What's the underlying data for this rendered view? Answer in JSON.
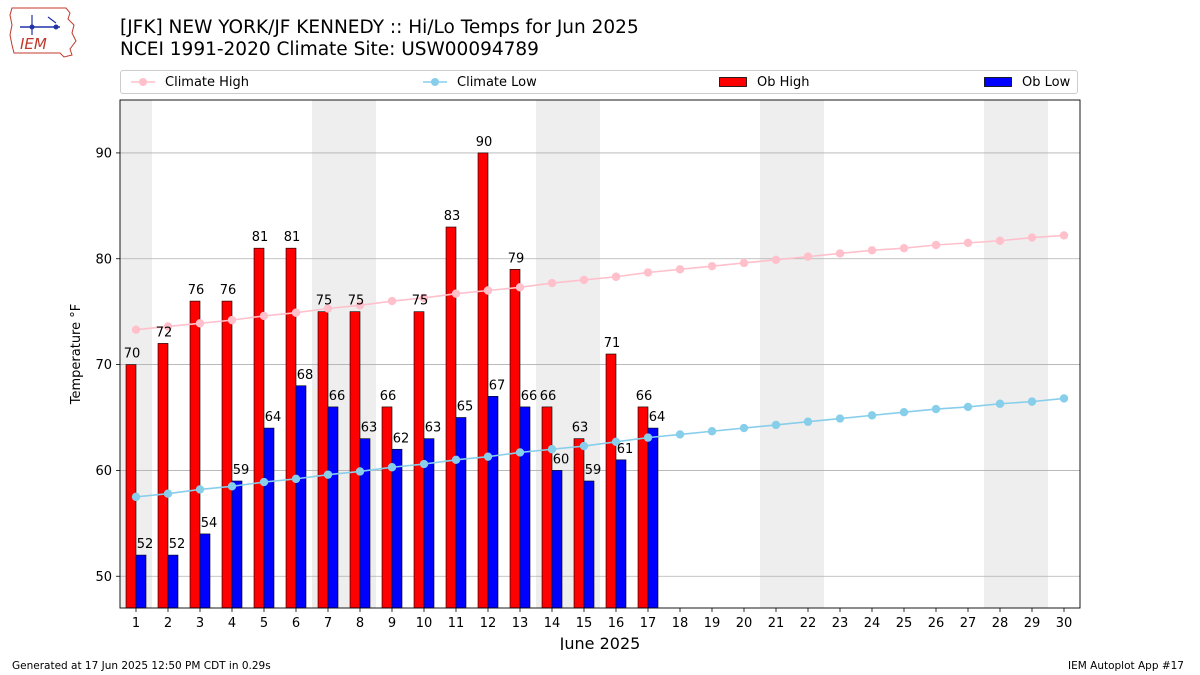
{
  "logo": {
    "text": "IEM"
  },
  "title": {
    "line1": "[JFK] NEW YORK/JF KENNEDY :: Hi/Lo Temps for Jun 2025",
    "line2": "NCEI 1991-2020 Climate Site: USW00094789"
  },
  "footer": {
    "left": "Generated at 17 Jun 2025 12:50 PM CDT in 0.29s",
    "right": "IEM Autoplot App #17"
  },
  "colors": {
    "ob_high": "#ff0000",
    "ob_low": "#0000ff",
    "climate_high": "#ffc0cb",
    "climate_low": "#87ceeb",
    "weekend_shade": "#eeeeee"
  },
  "chart_data": {
    "type": "bar",
    "xlabel": "June 2025",
    "ylabel": "Temperature °F",
    "ylim": [
      47,
      95
    ],
    "yticks": [
      50,
      60,
      70,
      80,
      90
    ],
    "grid": "horizontal",
    "legend_position": "top",
    "days": [
      1,
      2,
      3,
      4,
      5,
      6,
      7,
      8,
      9,
      10,
      11,
      12,
      13,
      14,
      15,
      16,
      17,
      18,
      19,
      20,
      21,
      22,
      23,
      24,
      25,
      26,
      27,
      28,
      29,
      30
    ],
    "weekend_spans": [
      [
        1,
        1
      ],
      [
        7,
        8
      ],
      [
        14,
        15
      ],
      [
        21,
        22
      ],
      [
        28,
        29
      ]
    ],
    "series": [
      {
        "name": "Climate High",
        "kind": "line",
        "color": "#ffc0cb",
        "values": [
          73.3,
          73.6,
          73.9,
          74.2,
          74.6,
          74.9,
          75.3,
          75.6,
          76.0,
          76.3,
          76.7,
          77.0,
          77.3,
          77.7,
          78.0,
          78.3,
          78.7,
          79.0,
          79.3,
          79.6,
          79.9,
          80.2,
          80.5,
          80.8,
          81.0,
          81.3,
          81.5,
          81.7,
          82.0,
          82.2
        ]
      },
      {
        "name": "Climate Low",
        "kind": "line",
        "color": "#87ceeb",
        "values": [
          57.5,
          57.8,
          58.2,
          58.5,
          58.9,
          59.2,
          59.6,
          59.9,
          60.3,
          60.6,
          61.0,
          61.3,
          61.7,
          62.0,
          62.3,
          62.7,
          63.1,
          63.4,
          63.7,
          64.0,
          64.3,
          64.6,
          64.9,
          65.2,
          65.5,
          65.8,
          66.0,
          66.3,
          66.5,
          66.8
        ]
      },
      {
        "name": "Ob High",
        "kind": "bar",
        "color": "#ff0000",
        "values": [
          70,
          72,
          76,
          76,
          81,
          81,
          75,
          75,
          66,
          75,
          83,
          90,
          79,
          66,
          63,
          71,
          66
        ]
      },
      {
        "name": "Ob Low",
        "kind": "bar",
        "color": "#0000ff",
        "values": [
          52,
          52,
          54,
          59,
          64,
          68,
          66,
          63,
          62,
          63,
          65,
          67,
          66,
          60,
          59,
          61,
          64
        ]
      }
    ]
  }
}
